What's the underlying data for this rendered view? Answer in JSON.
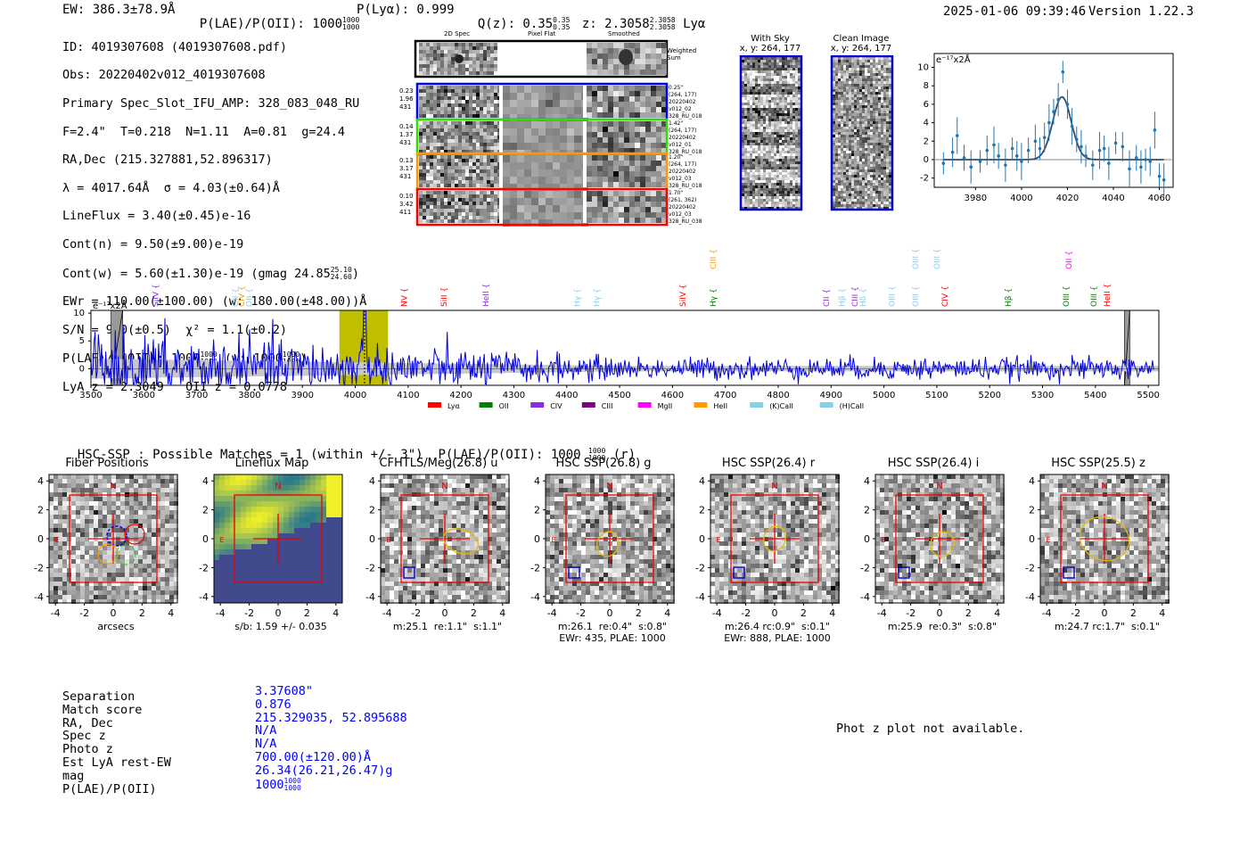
{
  "header": {
    "ew": "EW: 386.3±78.9Å",
    "plae_label": "P(LAE)/P(OII): 1000",
    "plae_hi": "1000",
    "plae_lo": "1000",
    "plya": "P(Lyα): 0.999",
    "qz_label": "Q(z): 0.35",
    "qz_hi": "0.35",
    "qz_lo": "0.35",
    "z_label": "z: 2.3058",
    "z_hi": "2.3058",
    "z_lo": "2.3058",
    "line": "Lyα",
    "datetime": "2025-01-06 09:39:46",
    "version": "Version 1.22.3"
  },
  "info": {
    "id": "ID: 4019307608 (4019307608.pdf)",
    "obs": "Obs: 20220402v012_4019307608",
    "primary": "Primary Spec_Slot_IFU_AMP: 328_083_048_RU",
    "params": "F=2.4\"  T=0.218  N=1.11  A=0.81  g=24.4",
    "radec": "RA,Dec (215.327881,52.896317)",
    "lambda": "λ = 4017.64Å  σ = 4.03(±0.64)Å",
    "lineflux": "LineFlux = 3.40(±0.45)e-16",
    "contn": "Cont(n) = 9.50(±9.00)e-19",
    "contw_label": "Cont(w) = 5.60(±1.30)e-19 (gmag 24.85",
    "contw_hi": "25.10",
    "contw_lo": "24.60",
    "contw_end": ")",
    "ewr": "EWr = 110.00(±100.00) (w: 180.00(±48.00))Å",
    "sn": "S/N = 9.0(±0.5)  χ² = 1.1(±0.2)",
    "plae_label": "P(LAE)/P(OII): 1000",
    "plae_hi": "1000",
    "plae_lo": "1000",
    "plae_w": "(w: 1000",
    "plae_w_hi": "1000",
    "plae_w_lo": "1000",
    "plae_w_end": ")",
    "lyaz": "LyA z = 2.3049   OII z = 0.0778"
  },
  "cutouts": {
    "col_2d": "2D Spec",
    "col_flat": "Pixel Flat",
    "col_smooth": "Smoothed",
    "weighted": "Weighted Sum",
    "rows": [
      {
        "color": "#0000ff",
        "left": [
          "0.23",
          "1.96",
          "431"
        ],
        "right": [
          "0.25\"",
          "(264, 177)",
          "20220402",
          "v012_02",
          "328_RU_018"
        ]
      },
      {
        "color": "#33dd00",
        "left": [
          "0.14",
          "1.37",
          "431"
        ],
        "right": [
          "1.42\"",
          "(264, 177)",
          "20220402",
          "v012_01",
          "328_RU_018"
        ]
      },
      {
        "color": "#ff9900",
        "left": [
          "0.13",
          "3.17",
          "431"
        ],
        "right": [
          "1.20\"",
          "(264, 177)",
          "20220402",
          "v012_03",
          "328_RU_018"
        ]
      },
      {
        "color": "#ff0000",
        "left": [
          "0.10",
          "3.42",
          "411"
        ],
        "right": [
          "1.70\"",
          "(261, 362)",
          "20220402",
          "v012_03",
          "328_RU_038"
        ]
      }
    ]
  },
  "sky": {
    "with_sky": "With Sky",
    "with_sky_xy": "x, y: 264, 177",
    "clean": "Clean Image",
    "clean_xy": "x, y: 264, 177"
  },
  "zoom_plot": {
    "unit": "e⁻¹⁷x2Å",
    "xticks": [
      "3980",
      "4000",
      "4020",
      "4040",
      "4060"
    ],
    "yticks": [
      "10",
      "8",
      "6",
      "4",
      "2",
      "0",
      "-2"
    ]
  },
  "spectrum": {
    "unit": "e⁻¹⁷x2Å",
    "xticks": [
      "3500",
      "3600",
      "3700",
      "3800",
      "3900",
      "4000",
      "4100",
      "4200",
      "4300",
      "4400",
      "4500",
      "4600",
      "4700",
      "4800",
      "4900",
      "5000",
      "5100",
      "5200",
      "5300",
      "5400",
      "5500"
    ],
    "yticks": [
      "10",
      "5",
      "0"
    ],
    "lines": [
      {
        "label": "SiIV",
        "x": 3627,
        "color": "#8a2be2",
        "row": 1
      },
      {
        "label": "OII",
        "x": 3778,
        "color": "#87ceeb",
        "row": 1
      },
      {
        "label": "CIV",
        "x": 3790,
        "color": "#ff9900",
        "row": 1
      },
      {
        "label": "OII",
        "x": 3804,
        "color": "#87ceeb",
        "row": 1
      },
      {
        "label": "NV",
        "x": 4098,
        "color": "#ff0000",
        "row": 1
      },
      {
        "label": "SiII",
        "x": 4173,
        "color": "#ff0000",
        "row": 1
      },
      {
        "label": "HeII",
        "x": 4252,
        "color": "#8a2be2",
        "row": 1
      },
      {
        "label": "Hγ",
        "x": 4425,
        "color": "#87ceeb",
        "row": 1
      },
      {
        "label": "Hγ",
        "x": 4462,
        "color": "#87ceeb",
        "row": 1
      },
      {
        "label": "SiIV",
        "x": 4625,
        "color": "#ff0000",
        "row": 1
      },
      {
        "label": "CIII",
        "x": 4682,
        "color": "#ff9900",
        "row": 0
      },
      {
        "label": "Hγ",
        "x": 4682,
        "color": "#008000",
        "row": 1
      },
      {
        "label": "CII",
        "x": 4896,
        "color": "#8a2be2",
        "row": 1
      },
      {
        "label": "Hβ",
        "x": 4926,
        "color": "#87ceeb",
        "row": 1
      },
      {
        "label": "CIII",
        "x": 4950,
        "color": "#8a2be2",
        "row": 1
      },
      {
        "label": "Hδ",
        "x": 4965,
        "color": "#87ceeb",
        "row": 1
      },
      {
        "label": "OIII",
        "x": 5020,
        "color": "#87ceeb",
        "row": 1
      },
      {
        "label": "OIII",
        "x": 5065,
        "color": "#87ceeb",
        "row": 0
      },
      {
        "label": "OIII",
        "x": 5065,
        "color": "#87ceeb",
        "row": 1
      },
      {
        "label": "OIII",
        "x": 5105,
        "color": "#87ceeb",
        "row": 0
      },
      {
        "label": "CIV",
        "x": 5120,
        "color": "#ff0000",
        "row": 1
      },
      {
        "label": "Hβ",
        "x": 5240,
        "color": "#008000",
        "row": 1
      },
      {
        "label": "OIII",
        "x": 5350,
        "color": "#008000",
        "row": 1
      },
      {
        "label": "OII",
        "x": 5355,
        "color": "#ff00ff",
        "row": 0
      },
      {
        "label": "OIII",
        "x": 5402,
        "color": "#008000",
        "row": 1
      },
      {
        "label": "HeII",
        "x": 5427,
        "color": "#ff0000",
        "row": 1
      }
    ],
    "legend": [
      {
        "label": "Lyα",
        "color": "#ff0000"
      },
      {
        "label": "OII",
        "color": "#008000"
      },
      {
        "label": "CIV",
        "color": "#8a2be2"
      },
      {
        "label": "CIII",
        "color": "#800080"
      },
      {
        "label": "MgII",
        "color": "#ff00ff"
      },
      {
        "label": "HeII",
        "color": "#ff9900"
      },
      {
        "label": "(K)CaII",
        "color": "#87ceeb"
      },
      {
        "label": "(H)CaII",
        "color": "#87ceeb"
      }
    ]
  },
  "hsc": {
    "summary_label": "HSC-SSP : Possible Matches = 1 (within +/- 3\")  P(LAE)/P(OII): 1000",
    "summary_hi": "1000",
    "summary_lo": "1000",
    "summary_end": "(r)",
    "panels": [
      {
        "title": "Fiber Positions",
        "cap1": "arcsecs",
        "cap2": ""
      },
      {
        "title": "Lineflux Map",
        "cap1": "s/b: 1.59 +/- 0.035",
        "cap2": ""
      },
      {
        "title": "CFHTLS/Meg(26.8) u",
        "cap1": "m:25.1  re:1.1\"  s:1.1\"",
        "cap2": ""
      },
      {
        "title": "HSC SSP(26.8) g",
        "cap1": "m:26.1  re:0.4\"  s:0.8\"",
        "cap2": "EWr: 435, PLAE: 1000"
      },
      {
        "title": "HSC SSP(26.4) r",
        "cap1": "m:26.4 rc:0.9\"  s:0.1\"",
        "cap2": "EWr: 888, PLAE: 1000"
      },
      {
        "title": "HSC SSP(26.4) i",
        "cap1": "m:25.9  re:0.3\"  s:0.8\"",
        "cap2": ""
      },
      {
        "title": "HSC SSP(25.5) z",
        "cap1": "m:24.7 rc:1.7\"  s:0.1\"",
        "cap2": ""
      }
    ],
    "ticks": [
      "4",
      "2",
      "0",
      "-2",
      "-4"
    ],
    "xticks": [
      "-4",
      "-2",
      "0",
      "2",
      "4"
    ],
    "north": "N",
    "east": "E"
  },
  "match": {
    "labels": [
      "Separation",
      "Match score",
      "RA, Dec",
      "Spec z",
      "Photo z",
      "Est LyA rest-EW",
      "mag",
      "P(LAE)/P(OII)"
    ],
    "values": [
      "3.37608\"",
      "0.876",
      "215.329035, 52.895688",
      "N/A",
      "N/A",
      "700.00(±120.00)Å",
      "26.34(26.21,26.47)g"
    ],
    "plae_value": "1000",
    "plae_hi": "1000",
    "plae_lo": "1000",
    "photz_note": "Phot z plot not available."
  },
  "zoom_chart_data": {
    "type": "scatter",
    "x": [
      3966,
      3970,
      3972,
      3975,
      3978,
      3982,
      3985,
      3988,
      3990,
      3993,
      3996,
      3998,
      4000,
      4003,
      4006,
      4008,
      4010,
      4012,
      4014,
      4016,
      4018,
      4020,
      4022,
      4024,
      4026,
      4028,
      4031,
      4034,
      4036,
      4038,
      4041,
      4044,
      4047,
      4050,
      4052,
      4054,
      4056,
      4058,
      4060,
      4062
    ],
    "y": [
      -0.4,
      0.8,
      2.6,
      0.2,
      -0.8,
      -0.2,
      1.0,
      1.6,
      0.4,
      -0.6,
      1.2,
      0.4,
      -0.2,
      1.0,
      2.0,
      1.2,
      2.4,
      4.0,
      5.2,
      6.5,
      9.5,
      6.0,
      3.6,
      2.2,
      1.4,
      0.4,
      -0.6,
      1.0,
      1.2,
      -0.4,
      1.8,
      1.4,
      -1.0,
      0.2,
      -0.8,
      0.0,
      -0.2,
      3.2,
      -1.8,
      -2.2
    ],
    "fit_center": 4017.64,
    "fit_sigma": 4.03,
    "fit_amp": 6.8,
    "xlim": [
      3962,
      4066
    ],
    "ylim": [
      -3,
      11.5
    ]
  },
  "chart_data": {
    "type": "line",
    "title": "",
    "xlabel": "",
    "ylabel": "e⁻¹⁷x2Å",
    "xlim": [
      3500,
      5520
    ],
    "ylim": [
      -3,
      10.5
    ],
    "peak_x": 4017.6,
    "peak_y": 9.5,
    "highlight_band": [
      3970,
      4062
    ],
    "masked_bands": [
      [
        3538,
        3560
      ],
      [
        5455,
        5465
      ]
    ],
    "note": "noisy continuum around 0 with noise decreasing from ~±4 at 3500Å to ~±1 above 4500Å; single strong emission line at 4017.6Å"
  }
}
